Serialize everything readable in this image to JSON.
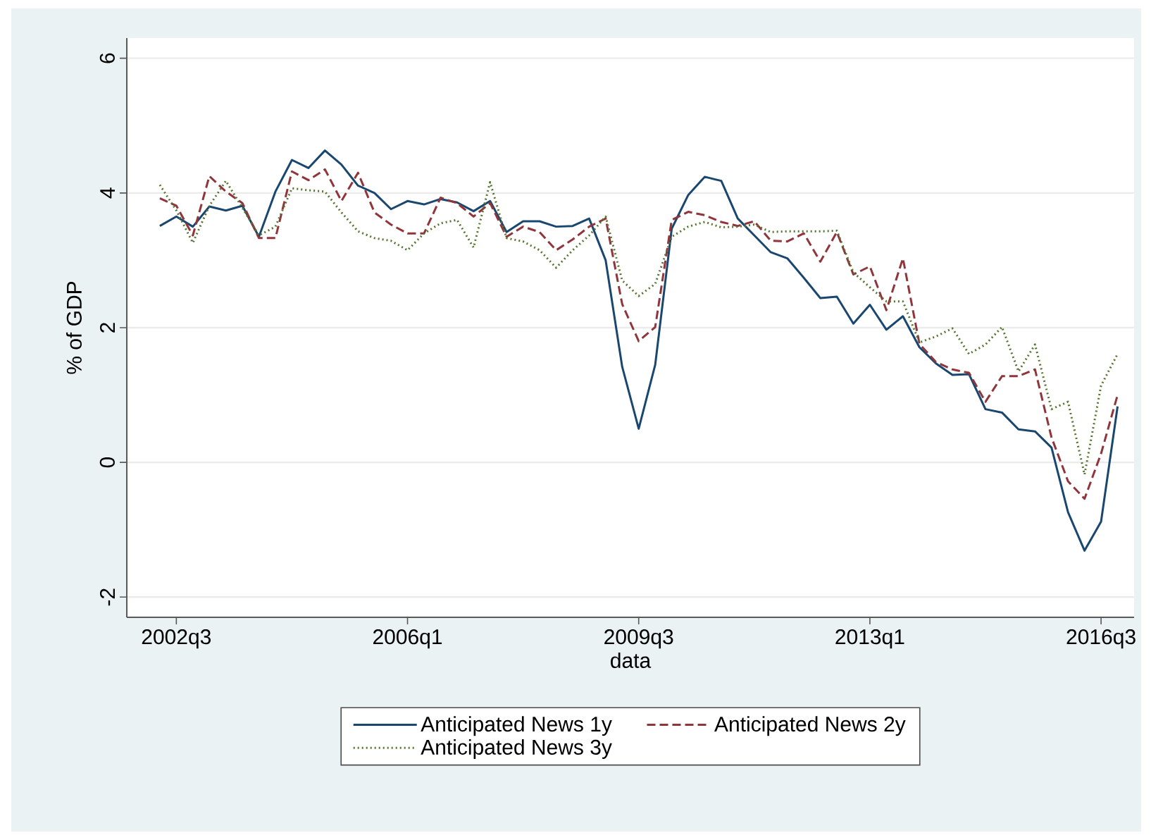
{
  "chart_data": {
    "type": "line",
    "xlabel": "data",
    "ylabel": "% of GDP",
    "x": [
      "2002-04",
      "2002-07",
      "2002-10",
      "2003-01",
      "2003-04",
      "2003-07",
      "2003-10",
      "2004-01",
      "2004-04",
      "2004-07",
      "2004-10",
      "2005-01",
      "2005-04",
      "2005-07",
      "2005-10",
      "2006-01",
      "2006-04",
      "2006-07",
      "2006-10",
      "2007-01",
      "2007-04",
      "2007-07",
      "2007-10",
      "2008-01",
      "2008-04",
      "2008-07",
      "2008-10",
      "2009-01",
      "2009-04",
      "2009-07",
      "2009-10",
      "2010-01",
      "2010-04",
      "2010-07",
      "2010-10",
      "2011-01",
      "2011-04",
      "2011-07",
      "2011-10",
      "2012-01",
      "2012-04",
      "2012-07",
      "2012-10",
      "2013-01",
      "2013-04",
      "2013-07",
      "2013-10",
      "2014-01",
      "2014-04",
      "2014-07",
      "2014-10",
      "2015-01",
      "2015-04",
      "2015-07",
      "2015-10",
      "2016-01",
      "2016-04",
      "2016-07",
      "2016-10"
    ],
    "xlim": [
      "2001-10",
      "2017-01"
    ],
    "xticks": [
      {
        "value": "2002-07",
        "label": "2002q3"
      },
      {
        "value": "2006-01",
        "label": "2006q1"
      },
      {
        "value": "2009-07",
        "label": "2009q3"
      },
      {
        "value": "2013-01",
        "label": "2013q1"
      },
      {
        "value": "2016-07",
        "label": "2016q3"
      }
    ],
    "ylim": [
      -2.3,
      6.3
    ],
    "yticks": [
      -2,
      0,
      2,
      4,
      6
    ],
    "grid": "y",
    "legend": "bottom",
    "series": [
      {
        "name": "Anticipated News 1y",
        "color": "#1a476f",
        "line_style": "solid",
        "values": [
          3.51,
          3.65,
          3.5,
          3.8,
          3.74,
          3.81,
          3.35,
          4.02,
          4.49,
          4.37,
          4.63,
          4.42,
          4.11,
          4.0,
          3.76,
          3.88,
          3.83,
          3.91,
          3.86,
          3.73,
          3.88,
          3.42,
          3.58,
          3.58,
          3.5,
          3.51,
          3.62,
          3.0,
          1.42,
          0.5,
          1.45,
          3.47,
          3.97,
          4.24,
          4.18,
          3.62,
          3.37,
          3.12,
          3.03,
          2.74,
          2.44,
          2.46,
          2.06,
          2.34,
          1.97,
          2.17,
          1.71,
          1.47,
          1.3,
          1.31,
          0.79,
          0.74,
          0.49,
          0.46,
          0.22,
          -0.74,
          -1.31,
          -0.88,
          0.83
        ]
      },
      {
        "name": "Anticipated News 2y",
        "color": "#90353b",
        "line_style": "dashed",
        "values": [
          3.92,
          3.81,
          3.37,
          4.25,
          4.02,
          3.85,
          3.33,
          3.33,
          4.32,
          4.19,
          4.35,
          3.88,
          4.3,
          3.71,
          3.53,
          3.4,
          3.4,
          3.93,
          3.85,
          3.65,
          3.85,
          3.35,
          3.5,
          3.42,
          3.15,
          3.31,
          3.5,
          3.62,
          2.35,
          1.8,
          2.01,
          3.6,
          3.72,
          3.67,
          3.57,
          3.51,
          3.58,
          3.29,
          3.28,
          3.4,
          2.98,
          3.42,
          2.79,
          2.91,
          2.26,
          3.03,
          1.76,
          1.49,
          1.38,
          1.33,
          0.9,
          1.28,
          1.28,
          1.38,
          0.37,
          -0.28,
          -0.54,
          0.13,
          1.0
        ]
      },
      {
        "name": "Anticipated News 3y",
        "color": "#55752f",
        "line_style": "dotted",
        "values": [
          4.12,
          3.74,
          3.26,
          3.81,
          4.18,
          3.78,
          3.37,
          3.5,
          4.07,
          4.04,
          4.02,
          3.71,
          3.43,
          3.33,
          3.29,
          3.15,
          3.4,
          3.55,
          3.6,
          3.19,
          4.16,
          3.33,
          3.28,
          3.15,
          2.89,
          3.15,
          3.37,
          3.65,
          2.7,
          2.47,
          2.65,
          3.35,
          3.5,
          3.57,
          3.49,
          3.5,
          3.53,
          3.42,
          3.43,
          3.43,
          3.43,
          3.44,
          2.82,
          2.6,
          2.39,
          2.39,
          1.78,
          1.87,
          1.99,
          1.61,
          1.75,
          2.01,
          1.35,
          1.75,
          0.79,
          0.9,
          -0.18,
          1.14,
          1.61
        ]
      }
    ]
  }
}
